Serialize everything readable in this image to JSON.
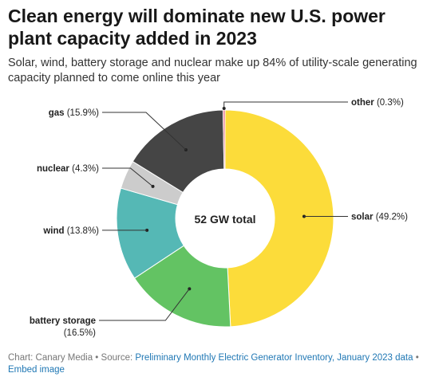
{
  "header": {
    "title": "Clean energy will dominate new U.S. power plant capacity added in 2023",
    "subtitle": "Solar, wind, battery storage and nuclear make up 84% of utility-scale generating capacity planned to come online this year"
  },
  "chart_data": {
    "type": "pie",
    "variant": "donut",
    "center_label": "52 GW total",
    "slices": [
      {
        "name": "solar",
        "value": 49.2,
        "label": "(49.2%)",
        "color": "#fcdc3a"
      },
      {
        "name": "battery storage",
        "value": 16.5,
        "label": "(16.5%)",
        "color": "#63c363"
      },
      {
        "name": "wind",
        "value": 13.8,
        "label": "(13.8%)",
        "color": "#55b8b5"
      },
      {
        "name": "nuclear",
        "value": 4.3,
        "label": "(4.3%)",
        "color": "#cccccc"
      },
      {
        "name": "gas",
        "value": 15.9,
        "label": "(15.9%)",
        "color": "#454545"
      },
      {
        "name": "other",
        "value": 0.3,
        "label": "(0.3%)",
        "color": "#e8708a"
      }
    ]
  },
  "footer": {
    "chart_credit": "Chart: Canary Media",
    "separator": " • ",
    "source_label": "Source: ",
    "source_link": "Preliminary Monthly Electric Generator Inventory, January 2023 data",
    "embed_link": "Embed image"
  }
}
